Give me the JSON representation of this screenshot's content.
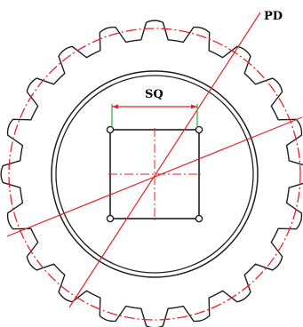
{
  "labels": {
    "pitch_diameter": "PD",
    "square_size": "SQ"
  },
  "sprocket": {
    "tooth_count": 20
  },
  "colors": {
    "outline": "#1e1e1e",
    "dimension": "#e8232a",
    "extension": "#2fa84a",
    "background": "#ffffff"
  }
}
